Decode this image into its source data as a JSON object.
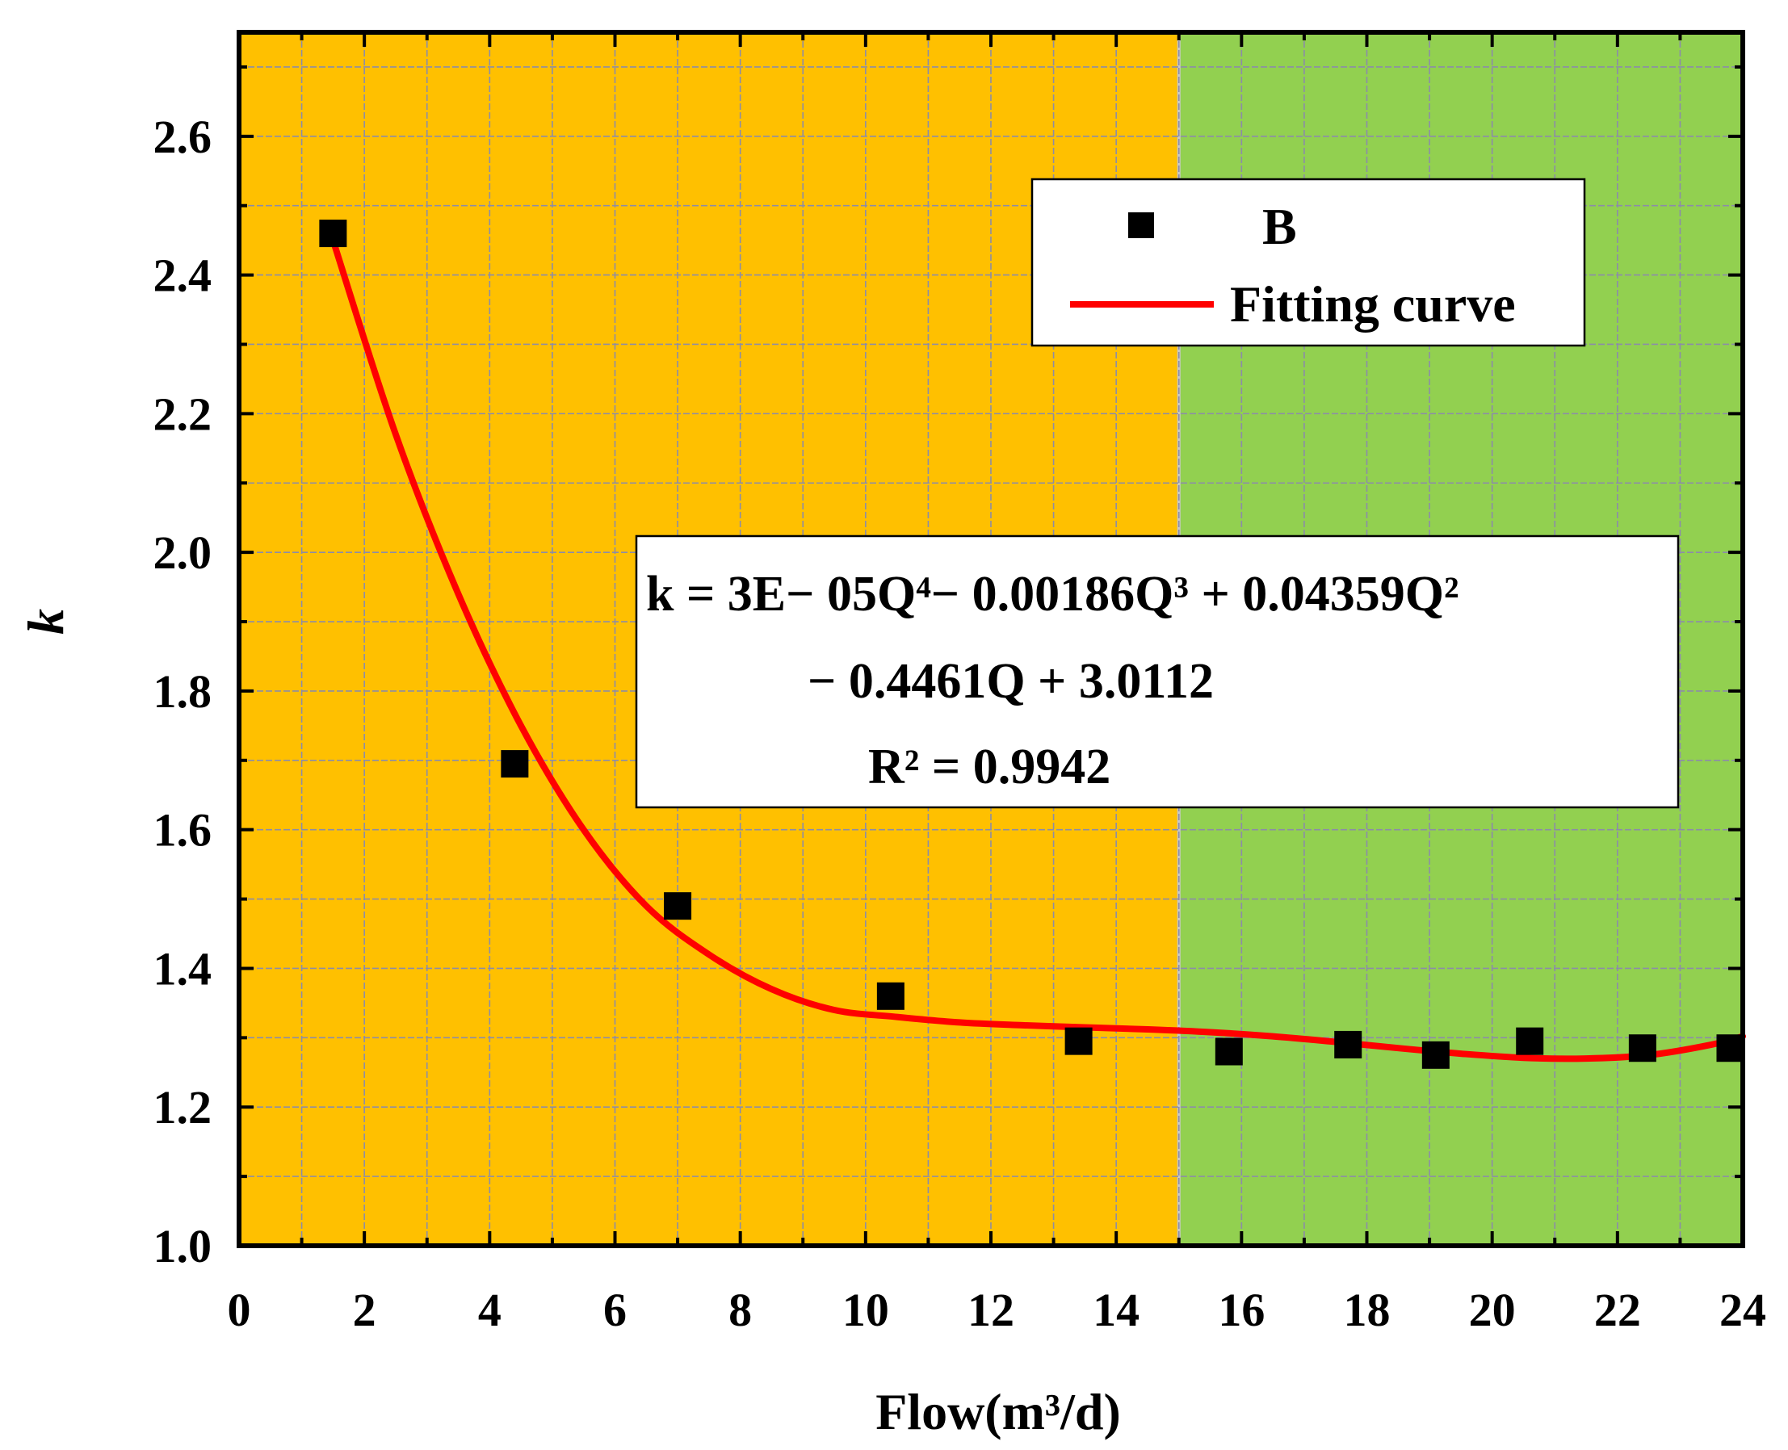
{
  "chart_data": {
    "type": "scatter",
    "title": "",
    "xlabel": "Flow(m³/d)",
    "ylabel": "k",
    "xlim": [
      0,
      24
    ],
    "ylim": [
      1.0,
      2.75
    ],
    "xticks": [
      0,
      2,
      4,
      6,
      8,
      10,
      12,
      14,
      16,
      18,
      20,
      22,
      24
    ],
    "xtick_labels": [
      "0",
      "2",
      "4",
      "6",
      "8",
      "10",
      "12",
      "14",
      "16",
      "18",
      "20",
      "22",
      "24"
    ],
    "yticks": [
      1.0,
      1.2,
      1.4,
      1.6,
      1.8,
      2.0,
      2.2,
      2.4,
      2.6
    ],
    "ytick_labels": [
      "1.0",
      "1.2",
      "1.4",
      "1.6",
      "1.8",
      "2.0",
      "2.2",
      "2.4",
      "2.6"
    ],
    "grid": true,
    "legend_position": "top-right",
    "regions": [
      {
        "x_from": 0,
        "x_to": 15,
        "color": "#FFC000"
      },
      {
        "x_from": 15,
        "x_to": 24,
        "color": "#92D050"
      }
    ],
    "series": [
      {
        "name": "B",
        "type": "scatter",
        "marker": "square",
        "color": "#000000",
        "x": [
          1.5,
          4.4,
          7.0,
          10.4,
          13.4,
          15.8,
          17.7,
          19.1,
          20.6,
          22.4,
          23.8
        ],
        "y": [
          2.46,
          1.695,
          1.49,
          1.36,
          1.295,
          1.28,
          1.29,
          1.275,
          1.295,
          1.285,
          1.285
        ]
      },
      {
        "name": "Fitting curve",
        "type": "line",
        "color": "#FF0000",
        "x": [
          1.5,
          2.5,
          3.5,
          4.5,
          5.5,
          6.5,
          7.5,
          8.5,
          9.5,
          10.5,
          11.5,
          12.5,
          13.5,
          14.5,
          15.5,
          16.5,
          17.5,
          18.5,
          19.5,
          20.5,
          21.5,
          22.5,
          23.5,
          24.0
        ],
        "y": [
          2.45,
          2.17,
          1.94,
          1.75,
          1.6,
          1.49,
          1.42,
          1.37,
          1.34,
          1.33,
          1.322,
          1.318,
          1.315,
          1.312,
          1.308,
          1.302,
          1.294,
          1.285,
          1.277,
          1.271,
          1.27,
          1.275,
          1.29,
          1.302
        ]
      }
    ],
    "equation_box": {
      "line1": "k = 3E− 05Q⁴− 0.00186Q³ + 0.04359Q²",
      "line2": "− 0.4461Q + 3.0112",
      "line3": "R² = 0.9942"
    }
  }
}
